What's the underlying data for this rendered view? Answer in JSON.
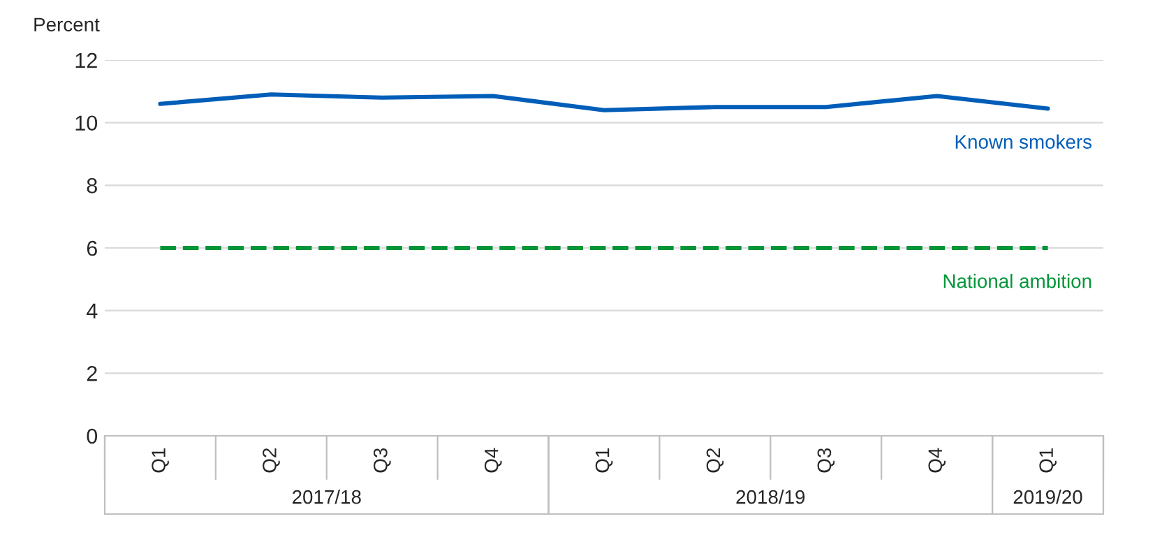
{
  "chart_data": {
    "type": "line",
    "ylabel": "Percent",
    "categories": [
      "Q1",
      "Q2",
      "Q3",
      "Q4",
      "Q1",
      "Q2",
      "Q3",
      "Q4",
      "Q1"
    ],
    "annotations": [
      "2017/18",
      "2018/19",
      "2019/20"
    ],
    "series": [
      {
        "name": "Known smokers",
        "color": "#005eb8",
        "line_style": "solid",
        "values": [
          10.6,
          10.9,
          10.8,
          10.85,
          10.4,
          10.5,
          10.5,
          10.85,
          10.45
        ]
      },
      {
        "name": "National ambition",
        "color": "#009639",
        "line_style": "dashed",
        "values": [
          6,
          6,
          6,
          6,
          6,
          6,
          6,
          6,
          6
        ]
      }
    ],
    "ylim": [
      0,
      12
    ],
    "yticks": [
      0,
      2,
      4,
      6,
      8,
      10,
      12
    ],
    "grid": "y",
    "legend": false,
    "marker": "none"
  }
}
